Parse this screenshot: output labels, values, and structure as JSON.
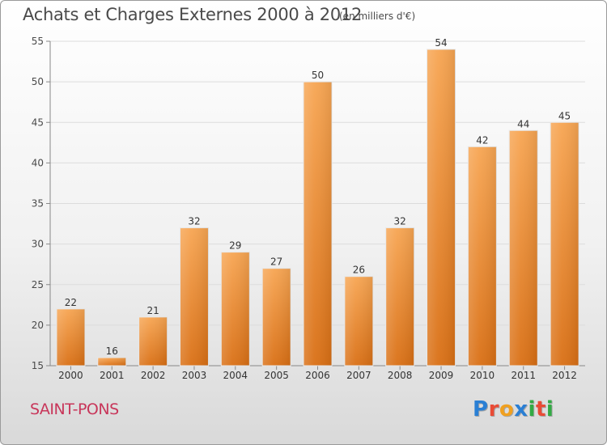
{
  "header": {
    "title": "Achats et Charges Externes 2000 à 2012",
    "subtitle": "(en milliers d'€)"
  },
  "footer": {
    "commune": "SAINT-PONS",
    "logo_text": "Proxiti"
  },
  "colors": {
    "bar": "#f0862a",
    "bar_light": "#f7a85a",
    "bar_dark": "#d66d12",
    "title": "#4a4a4a",
    "commune": "#c8365a",
    "logo": [
      "#2a7fd4",
      "#e94b35",
      "#f0a020",
      "#2a7fd4",
      "#33aa44",
      "#e94b35",
      "#33aa44"
    ]
  },
  "chart_data": {
    "type": "bar",
    "title": "Achats et Charges Externes 2000 à 2012",
    "subtitle": "(en milliers d'€)",
    "categories": [
      "2000",
      "2001",
      "2002",
      "2003",
      "2004",
      "2005",
      "2006",
      "2007",
      "2008",
      "2009",
      "2010",
      "2011",
      "2012"
    ],
    "values": [
      22,
      16,
      21,
      32,
      29,
      27,
      50,
      26,
      32,
      54,
      42,
      44,
      45
    ],
    "ylim": [
      15,
      55
    ],
    "yticks": [
      15,
      20,
      25,
      30,
      35,
      40,
      45,
      50,
      55
    ],
    "grid": true,
    "legend": "none"
  }
}
